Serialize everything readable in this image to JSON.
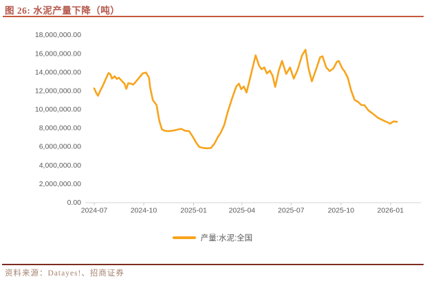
{
  "figure": {
    "title": "图 26:  水泥产量下降（吨）",
    "source": "资料来源：Datayes!、招商证券"
  },
  "colors": {
    "line": "#F7A41C",
    "title_text": "#B5584C",
    "title_rule": "#C4583C",
    "footer_rule": "#7D2B1F",
    "footer_text": "#A5826F",
    "axis_text": "#595959",
    "axis_line": "#D3D3D3",
    "tick_line": "#C9C9C9"
  },
  "chart_data": {
    "type": "line",
    "title": "图 26: 水泥产量下降（吨）",
    "series_name": "产量:水泥:全国",
    "legend_position": "bottom",
    "grid": false,
    "ylim": [
      0,
      18000000
    ],
    "y_tick_values": [
      18000000,
      16000000,
      14000000,
      12000000,
      10000000,
      8000000,
      6000000,
      4000000,
      2000000,
      0
    ],
    "y_tick_labels": [
      "18,000,000.00",
      "16,000,000.00",
      "14,000,000.00",
      "12,000,000.00",
      "10,000,000.00",
      "8,000,000.00",
      "6,000,000.00",
      "4,000,000.00",
      "2,000,000.00",
      "0.00"
    ],
    "x_tick_labels": [
      "2024-07",
      "2024-10",
      "2025-01",
      "2025-04",
      "2025-07",
      "2025-10",
      "2026-01"
    ],
    "x_tick_week_offsets": [
      0,
      13.1,
      26.3,
      39.1,
      52.1,
      65.3,
      78.4
    ],
    "x_unit": "weeks since 2024-07",
    "y_unit": "tons",
    "points": [
      [
        0,
        12250000
      ],
      [
        0.5,
        11800000
      ],
      [
        1,
        11450000
      ],
      [
        1.6,
        12000000
      ],
      [
        2.4,
        12650000
      ],
      [
        3,
        13200000
      ],
      [
        3.8,
        13900000
      ],
      [
        4.3,
        13750000
      ],
      [
        4.7,
        13300000
      ],
      [
        5.4,
        13550000
      ],
      [
        6,
        13250000
      ],
      [
        6.5,
        13400000
      ],
      [
        7.2,
        13100000
      ],
      [
        8,
        12750000
      ],
      [
        8.5,
        12200000
      ],
      [
        9,
        12800000
      ],
      [
        9.8,
        12750000
      ],
      [
        10.3,
        12650000
      ],
      [
        11,
        12950000
      ],
      [
        11.9,
        13400000
      ],
      [
        12.8,
        13850000
      ],
      [
        13.7,
        13950000
      ],
      [
        14.5,
        13400000
      ],
      [
        14.8,
        12350000
      ],
      [
        15.5,
        11000000
      ],
      [
        16.5,
        10450000
      ],
      [
        17.2,
        8800000
      ],
      [
        17.9,
        7850000
      ],
      [
        18.6,
        7700000
      ],
      [
        19.5,
        7650000
      ],
      [
        20.8,
        7700000
      ],
      [
        21.9,
        7800000
      ],
      [
        23,
        7900000
      ],
      [
        24,
        7700000
      ],
      [
        25.1,
        7650000
      ],
      [
        26,
        7100000
      ],
      [
        27,
        6400000
      ],
      [
        27.8,
        5950000
      ],
      [
        28.8,
        5850000
      ],
      [
        29.8,
        5800000
      ],
      [
        30.9,
        5850000
      ],
      [
        31.8,
        6300000
      ],
      [
        32.7,
        7000000
      ],
      [
        33.5,
        7500000
      ],
      [
        34.4,
        8300000
      ],
      [
        35.4,
        9800000
      ],
      [
        36.5,
        11200000
      ],
      [
        37.6,
        12450000
      ],
      [
        38.3,
        12750000
      ],
      [
        38.9,
        12150000
      ],
      [
        39.6,
        12450000
      ],
      [
        40.3,
        11800000
      ],
      [
        41.4,
        13600000
      ],
      [
        42.7,
        15800000
      ],
      [
        43.6,
        14700000
      ],
      [
        44.3,
        14300000
      ],
      [
        45,
        14500000
      ],
      [
        45.7,
        13850000
      ],
      [
        46.5,
        14150000
      ],
      [
        47.2,
        13600000
      ],
      [
        47.9,
        12400000
      ],
      [
        48.8,
        14100000
      ],
      [
        49.7,
        15200000
      ],
      [
        50.8,
        13800000
      ],
      [
        51.8,
        14500000
      ],
      [
        52.8,
        13300000
      ],
      [
        53.8,
        14200000
      ],
      [
        55,
        15800000
      ],
      [
        55.9,
        16400000
      ],
      [
        56.7,
        14400000
      ],
      [
        57.6,
        13000000
      ],
      [
        58.8,
        14400000
      ],
      [
        59.8,
        15600000
      ],
      [
        60.4,
        15700000
      ],
      [
        61.4,
        14500000
      ],
      [
        62.3,
        14100000
      ],
      [
        63.3,
        14400000
      ],
      [
        64.2,
        15100000
      ],
      [
        64.7,
        15200000
      ],
      [
        65.7,
        14350000
      ],
      [
        66.2,
        14100000
      ],
      [
        67.1,
        13400000
      ],
      [
        68,
        12000000
      ],
      [
        68.9,
        11000000
      ],
      [
        69.8,
        10800000
      ],
      [
        70.7,
        10450000
      ],
      [
        71.5,
        10450000
      ],
      [
        72.5,
        9900000
      ],
      [
        73.8,
        9500000
      ],
      [
        75,
        9100000
      ],
      [
        76.5,
        8800000
      ],
      [
        77.6,
        8600000
      ],
      [
        78.3,
        8450000
      ],
      [
        79.2,
        8700000
      ],
      [
        80.1,
        8650000
      ]
    ]
  },
  "legend": {
    "label": "产量:水泥:全国"
  }
}
